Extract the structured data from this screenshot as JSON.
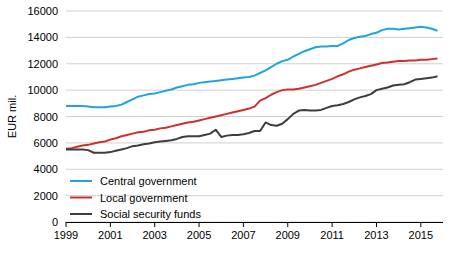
{
  "chart_data": {
    "type": "line",
    "y_label": "EUR mil.",
    "x": [
      1999,
      1999.25,
      1999.5,
      1999.75,
      2000,
      2000.25,
      2000.5,
      2000.75,
      2001,
      2001.25,
      2001.5,
      2001.75,
      2002,
      2002.25,
      2002.5,
      2002.75,
      2003,
      2003.25,
      2003.5,
      2003.75,
      2004,
      2004.25,
      2004.5,
      2004.75,
      2005,
      2005.25,
      2005.5,
      2005.75,
      2006,
      2006.25,
      2006.5,
      2006.75,
      2007,
      2007.25,
      2007.5,
      2007.75,
      2008,
      2008.25,
      2008.5,
      2008.75,
      2009,
      2009.25,
      2009.5,
      2009.75,
      2010,
      2010.25,
      2010.5,
      2010.75,
      2011,
      2011.25,
      2011.5,
      2011.75,
      2012,
      2012.25,
      2012.5,
      2012.75,
      2013,
      2013.25,
      2013.5,
      2013.75,
      2014,
      2014.25,
      2014.5,
      2014.75,
      2015,
      2015.25,
      2015.5,
      2015.75
    ],
    "series": [
      {
        "name": "Central government",
        "color": "#1ea5dc",
        "values": [
          8800,
          8800,
          8800,
          8800,
          8750,
          8700,
          8700,
          8700,
          8750,
          8800,
          8900,
          9100,
          9300,
          9500,
          9600,
          9700,
          9750,
          9850,
          9950,
          10050,
          10200,
          10300,
          10400,
          10450,
          10550,
          10600,
          10650,
          10700,
          10750,
          10800,
          10850,
          10900,
          10950,
          11000,
          11100,
          11300,
          11500,
          11750,
          12000,
          12200,
          12300,
          12550,
          12750,
          12950,
          13100,
          13250,
          13300,
          13300,
          13350,
          13350,
          13550,
          13800,
          13950,
          14050,
          14100,
          14250,
          14350,
          14550,
          14650,
          14650,
          14600,
          14650,
          14700,
          14750,
          14800,
          14750,
          14650,
          14500
        ]
      },
      {
        "name": "Local government",
        "color": "#d12f2f",
        "values": [
          5550,
          5600,
          5700,
          5800,
          5850,
          5950,
          6050,
          6100,
          6250,
          6350,
          6500,
          6600,
          6700,
          6800,
          6850,
          6950,
          7000,
          7100,
          7150,
          7250,
          7350,
          7450,
          7550,
          7600,
          7700,
          7800,
          7900,
          8000,
          8100,
          8200,
          8300,
          8400,
          8500,
          8600,
          8750,
          9200,
          9400,
          9650,
          9850,
          10000,
          10050,
          10050,
          10100,
          10200,
          10300,
          10400,
          10550,
          10700,
          10850,
          11050,
          11200,
          11400,
          11550,
          11650,
          11750,
          11850,
          11950,
          12050,
          12100,
          12150,
          12200,
          12200,
          12250,
          12250,
          12300,
          12300,
          12350,
          12400
        ]
      },
      {
        "name": "Social security funds",
        "color": "#3d3d3d",
        "values": [
          5500,
          5500,
          5500,
          5500,
          5450,
          5250,
          5250,
          5250,
          5300,
          5400,
          5500,
          5600,
          5750,
          5800,
          5900,
          5950,
          6050,
          6100,
          6150,
          6200,
          6300,
          6450,
          6500,
          6500,
          6500,
          6600,
          6700,
          7000,
          6450,
          6550,
          6600,
          6600,
          6650,
          6750,
          6900,
          6900,
          7550,
          7350,
          7300,
          7450,
          7800,
          8200,
          8450,
          8500,
          8450,
          8450,
          8500,
          8650,
          8800,
          8850,
          8950,
          9100,
          9300,
          9450,
          9550,
          9700,
          10000,
          10100,
          10200,
          10350,
          10400,
          10450,
          10600,
          10800,
          10850,
          10900,
          10950,
          11050
        ]
      }
    ],
    "xlim": [
      1999,
      2016
    ],
    "xticks": [
      1999,
      2001,
      2003,
      2005,
      2007,
      2009,
      2011,
      2013,
      2015
    ],
    "ylim": [
      0,
      16000
    ],
    "yticks": [
      0,
      2000,
      4000,
      6000,
      8000,
      10000,
      12000,
      14000,
      16000
    ],
    "grid": true,
    "legend": "lower left"
  }
}
